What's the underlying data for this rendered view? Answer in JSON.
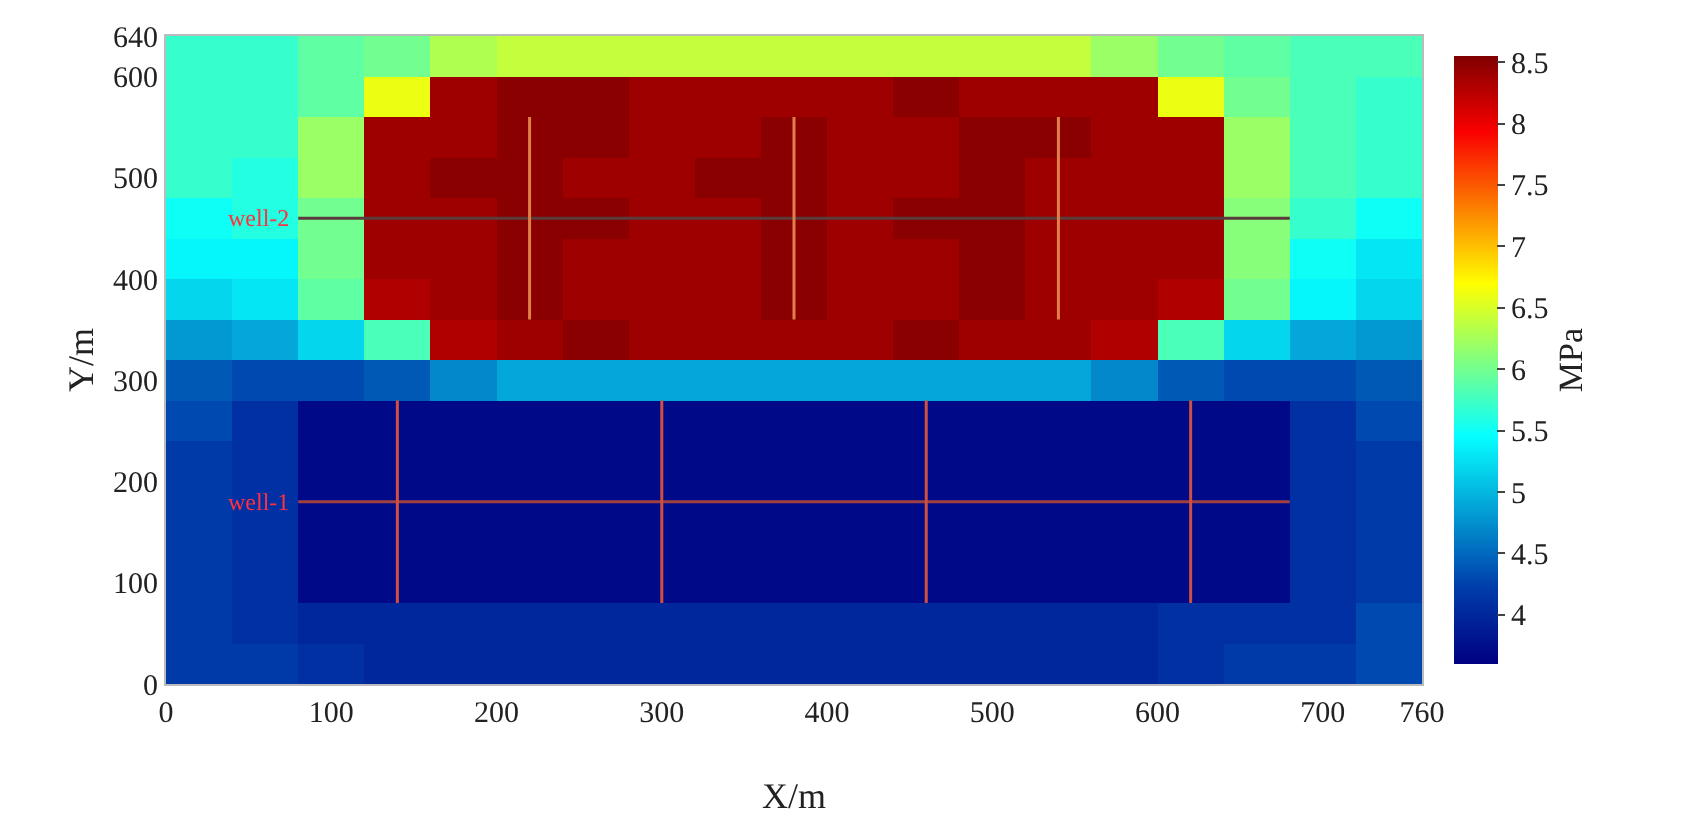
{
  "chart_data": {
    "type": "heatmap",
    "xlabel": "X/m",
    "ylabel": "Y/m",
    "clabel": "MPa",
    "x": [
      20,
      60,
      100,
      140,
      180,
      220,
      260,
      300,
      340,
      380,
      420,
      460,
      500,
      540,
      580,
      620,
      660,
      700,
      740
    ],
    "cells": [
      [
        5.7,
        5.7,
        5.9,
        6.0,
        6.3,
        6.4,
        6.4,
        6.4,
        6.4,
        6.4,
        6.4,
        6.4,
        6.4,
        6.4,
        6.2,
        6.0,
        5.9,
        5.8,
        5.8
      ],
      [
        5.7,
        5.7,
        5.9,
        6.6,
        8.4,
        8.5,
        8.5,
        8.4,
        8.4,
        8.4,
        8.4,
        8.5,
        8.4,
        8.4,
        8.4,
        6.6,
        6.0,
        5.8,
        5.7
      ],
      [
        5.7,
        5.7,
        6.2,
        8.4,
        8.4,
        8.5,
        8.5,
        8.4,
        8.4,
        8.5,
        8.4,
        8.4,
        8.5,
        8.5,
        8.4,
        8.4,
        6.2,
        5.8,
        5.7
      ],
      [
        5.7,
        5.6,
        6.2,
        8.4,
        8.5,
        8.5,
        8.4,
        8.4,
        8.5,
        8.5,
        8.4,
        8.4,
        8.5,
        8.4,
        8.4,
        8.4,
        6.2,
        5.8,
        5.7
      ],
      [
        5.5,
        5.6,
        6.0,
        8.4,
        8.4,
        8.5,
        8.5,
        8.4,
        8.4,
        8.5,
        8.4,
        8.5,
        8.5,
        8.4,
        8.4,
        8.4,
        6.1,
        5.7,
        5.5
      ],
      [
        5.4,
        5.4,
        6.0,
        8.4,
        8.4,
        8.5,
        8.4,
        8.4,
        8.4,
        8.5,
        8.4,
        8.4,
        8.5,
        8.4,
        8.4,
        8.4,
        6.1,
        5.5,
        5.3
      ],
      [
        5.2,
        5.3,
        5.9,
        8.3,
        8.4,
        8.5,
        8.4,
        8.4,
        8.4,
        8.5,
        8.4,
        8.4,
        8.5,
        8.4,
        8.4,
        8.3,
        6.0,
        5.4,
        5.2
      ],
      [
        4.8,
        4.9,
        5.2,
        5.8,
        8.3,
        8.4,
        8.5,
        8.4,
        8.4,
        8.4,
        8.4,
        8.5,
        8.4,
        8.4,
        8.3,
        5.8,
        5.2,
        4.9,
        4.8
      ],
      [
        4.4,
        4.3,
        4.3,
        4.4,
        4.7,
        4.9,
        4.9,
        4.9,
        4.9,
        4.9,
        4.9,
        4.9,
        4.9,
        4.9,
        4.7,
        4.4,
        4.3,
        4.3,
        4.4
      ],
      [
        4.3,
        4.1,
        3.7,
        3.7,
        3.7,
        3.7,
        3.7,
        3.7,
        3.7,
        3.7,
        3.7,
        3.7,
        3.7,
        3.7,
        3.7,
        3.7,
        3.7,
        4.1,
        4.3
      ],
      [
        4.2,
        4.1,
        3.7,
        3.7,
        3.7,
        3.7,
        3.7,
        3.7,
        3.7,
        3.7,
        3.7,
        3.7,
        3.7,
        3.7,
        3.7,
        3.7,
        3.7,
        4.1,
        4.2
      ],
      [
        4.2,
        4.1,
        3.7,
        3.7,
        3.7,
        3.7,
        3.7,
        3.7,
        3.7,
        3.7,
        3.7,
        3.7,
        3.7,
        3.7,
        3.7,
        3.7,
        3.7,
        4.1,
        4.2
      ],
      [
        4.2,
        4.1,
        3.7,
        3.7,
        3.7,
        3.7,
        3.7,
        3.7,
        3.7,
        3.7,
        3.7,
        3.7,
        3.7,
        3.7,
        3.7,
        3.7,
        3.7,
        4.1,
        4.2
      ],
      [
        4.2,
        4.1,
        3.7,
        3.7,
        3.7,
        3.7,
        3.7,
        3.7,
        3.7,
        3.7,
        3.7,
        3.7,
        3.7,
        3.7,
        3.7,
        3.7,
        3.7,
        4.1,
        4.2
      ],
      [
        4.2,
        4.1,
        4.0,
        4.0,
        4.0,
        4.0,
        4.0,
        4.0,
        4.0,
        4.0,
        4.0,
        4.0,
        4.0,
        4.0,
        4.0,
        4.1,
        4.1,
        4.1,
        4.3
      ],
      [
        4.2,
        4.2,
        4.1,
        4.0,
        4.0,
        4.0,
        4.0,
        4.0,
        4.0,
        4.0,
        4.0,
        4.0,
        4.0,
        4.0,
        4.0,
        4.1,
        4.2,
        4.2,
        4.3
      ]
    ],
    "clim": [
      3.6,
      8.55
    ],
    "cticks": [
      4,
      4.5,
      5,
      5.5,
      6,
      6.5,
      7,
      7.5,
      8,
      8.5
    ],
    "xlim": [
      0,
      760
    ],
    "xticks": [
      0,
      100,
      200,
      300,
      400,
      500,
      600,
      700,
      760
    ],
    "ylim": [
      0,
      640
    ],
    "yticks": [
      0,
      100,
      200,
      300,
      400,
      500,
      600,
      640
    ],
    "series": [
      {
        "type": "line",
        "color": "#5a3c3c",
        "x": [
          80,
          680
        ],
        "values": [
          460,
          460
        ]
      },
      {
        "type": "line",
        "color": "#e08048",
        "x": [
          220,
          220,
          null,
          380,
          380,
          null,
          540,
          540
        ],
        "values": [
          360,
          560,
          null,
          360,
          560,
          null,
          360,
          560
        ]
      },
      {
        "type": "line",
        "color": "#a04040",
        "x": [
          80,
          680
        ],
        "values": [
          180,
          180
        ]
      },
      {
        "type": "line",
        "color": "#d05040",
        "x": [
          140,
          140,
          null,
          300,
          300,
          null,
          460,
          460,
          null,
          620,
          620
        ],
        "values": [
          80,
          280,
          null,
          80,
          280,
          null,
          80,
          280,
          null,
          80,
          280
        ]
      }
    ],
    "annotations": [
      {
        "text": "well-2",
        "x": 80,
        "y": 460
      },
      {
        "text": "well-1",
        "x": 80,
        "y": 180
      }
    ]
  }
}
